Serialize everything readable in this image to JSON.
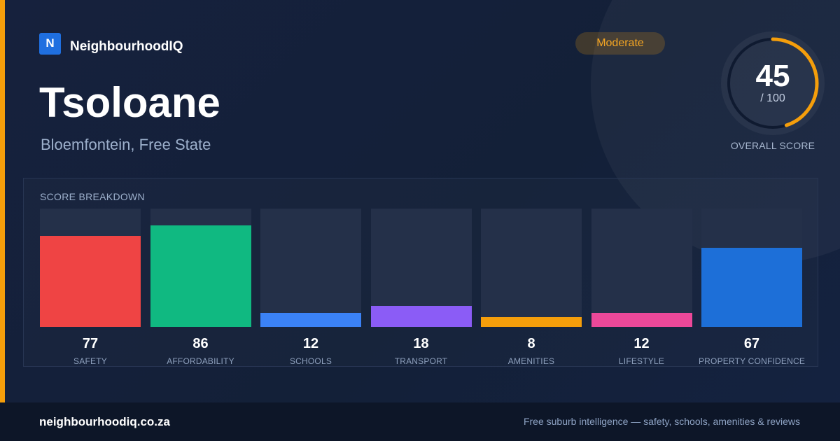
{
  "brand": {
    "logo_letter": "N",
    "name": "NeighbourhoodIQ"
  },
  "suburb": {
    "name": "Tsoloane",
    "location": "Bloemfontein, Free State"
  },
  "rating_badge": {
    "label": "Moderate"
  },
  "overall": {
    "score": "45",
    "max_label": "/ 100",
    "score_fraction": 0.45,
    "caption": "OVERALL SCORE"
  },
  "breakdown": {
    "heading": "SCORE BREAKDOWN",
    "max": 100,
    "metrics": [
      {
        "label": "SAFETY",
        "value": 77,
        "color": "#ef4444"
      },
      {
        "label": "AFFORDABILITY",
        "value": 86,
        "color": "#10b981"
      },
      {
        "label": "SCHOOLS",
        "value": 12,
        "color": "#3b82f6"
      },
      {
        "label": "TRANSPORT",
        "value": 18,
        "color": "#8b5cf6"
      },
      {
        "label": "AMENITIES",
        "value": 8,
        "color": "#f59e0b"
      },
      {
        "label": "LIFESTYLE",
        "value": 12,
        "color": "#ec4899"
      },
      {
        "label": "PROPERTY CONFIDENCE",
        "value": 67,
        "color": "#1d6fd8"
      }
    ]
  },
  "footer": {
    "url": "neighbourhoodiq.co.za",
    "tagline": "Free suburb intelligence — safety, schools, amenities & reviews"
  },
  "colors": {
    "accent": "#f59e0b",
    "brand_blue": "#1f6fe0",
    "background": "#13203a",
    "footer_background": "#0d1628"
  }
}
